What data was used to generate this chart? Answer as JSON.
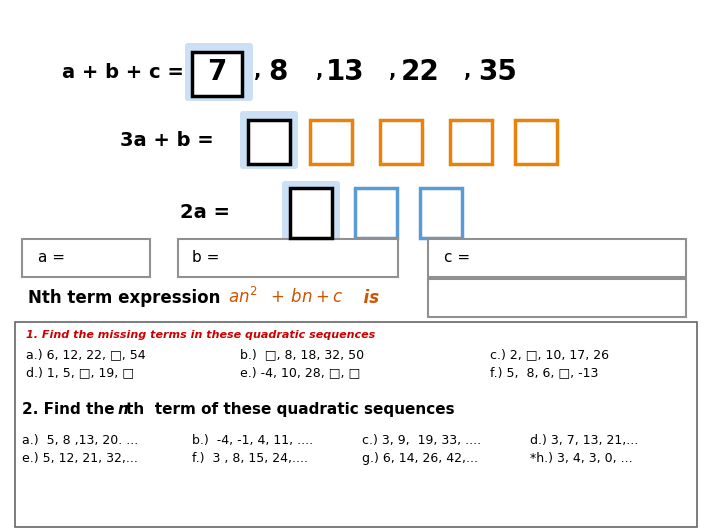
{
  "bg_color": "#ffffff",
  "row1_label": "a + b + c =",
  "row2_label": "3a + b =",
  "row3_label": "2a =",
  "box_highlight_color": "#cce0f5",
  "orange_color": "#e8820c",
  "blue_color": "#5b9bd5",
  "section1_title": "1. Find the missing terms in these quadratic sequences",
  "section1_a": "a.) 6, 12, 22, □, 54",
  "section1_b": "b.)  □, 8, 18, 32, 50",
  "section1_c": "c.) 2, □, 10, 17, 26",
  "section1_d": "d.) 1, 5, □, 19, □",
  "section1_e": "e.) -4, 10, 28, □, □",
  "section1_f": "f.) 5,  8, 6, □, -13",
  "section2_a": "a.)  5, 8 ,13, 20. ...",
  "section2_b": "b.)  -4, -1, 4, 11, ....",
  "section2_c": "c.) 3, 9,  19, 33, ....",
  "section2_d": "d.) 3, 7, 13, 21,...",
  "section2_e": "e.) 5, 12, 21, 32,...",
  "section2_f": "f.)  3 , 8, 15, 24,....",
  "section2_g": "g.) 6, 14, 26, 42,...",
  "section2_h": "*h.) 3, 4, 3, 0, ..."
}
